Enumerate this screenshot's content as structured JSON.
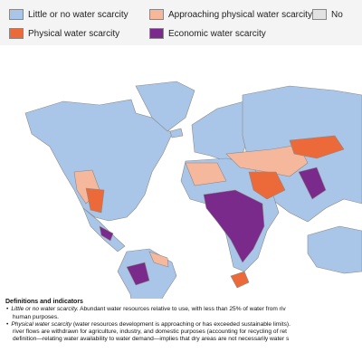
{
  "legend": {
    "items": [
      {
        "label": "Little or no water scarcity",
        "color": "#a9c6e8"
      },
      {
        "label": "Approaching physical water scarcity",
        "color": "#f6b89c"
      },
      {
        "label": "No",
        "color": "#e2e2e2"
      },
      {
        "label": "Physical water scarcity",
        "color": "#ec6a3a"
      },
      {
        "label": "Economic water scarcity",
        "color": "#7a2a8a"
      }
    ]
  },
  "definitions": {
    "title": "Definitions and indicators",
    "items": [
      {
        "term": "Little or no water scarcity.",
        "lines": [
          "Abundant water resources relative to use, with less than 25% of water from riv",
          "human purposes."
        ]
      },
      {
        "term": "Physical water scarcity",
        "lines": [
          "(water resources development is approaching or has exceeded sustainable limits).",
          "river flows are withdrawn for agriculture, industry, and domestic purposes (accounting for recycling of ret",
          "definition—relating water availability to water demand—implies that dry areas are not necessarily water s"
        ]
      }
    ]
  }
}
